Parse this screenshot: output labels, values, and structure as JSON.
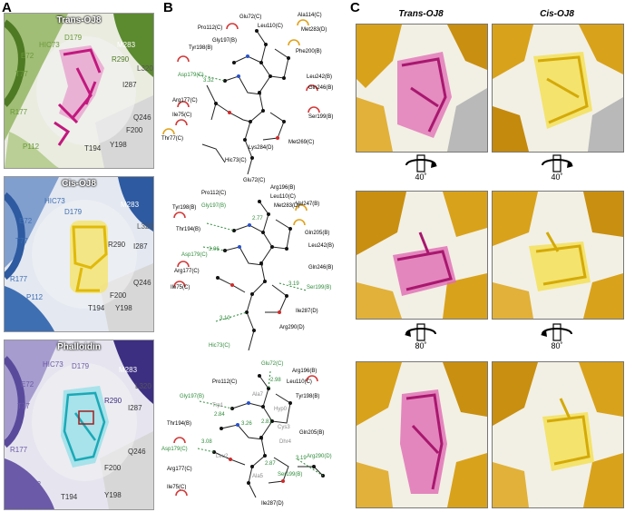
{
  "panels": {
    "a": {
      "letter": "A",
      "trans": {
        "title": "Trans-OJ8",
        "residues": [
          "D179",
          "HIC73",
          "M283",
          "E72",
          "R290",
          "L320",
          "T77",
          "I287",
          "R177",
          "Q246",
          "F200",
          "P112",
          "T194",
          "Y198"
        ]
      },
      "cis": {
        "title": "Cis-OJ8",
        "residues": [
          "HIC73",
          "D179",
          "M283",
          "E72",
          "L320",
          "T77",
          "R290",
          "I287",
          "Q246",
          "R177",
          "P112",
          "F200",
          "T194",
          "Y198"
        ]
      },
      "phalloidin": {
        "title": "Phalloidin",
        "residues": [
          "HIC73",
          "D179",
          "M283",
          "E72",
          "L320",
          "R290",
          "T77",
          "I287",
          "R177",
          "Q246",
          "F200",
          "P112",
          "T194",
          "Y198"
        ]
      }
    },
    "b": {
      "letter": "B",
      "diagram1": {
        "labels": [
          "Glu72(C)",
          "Ala114(C)",
          "Pro112(C)",
          "Leu110(C)",
          "Met283(D)",
          "Gly197(B)",
          "Tyr198(B)",
          "Phe200(B)",
          "Asp179(C)",
          "Leu242(B)",
          "Arg177(C)",
          "Gln246(B)",
          "Ile75(C)",
          "Ser199(B)",
          "Thr77(C)",
          "Met269(C)",
          "Lys284(D)",
          "Hic73(C)"
        ],
        "distances": [
          "3.32"
        ]
      },
      "diagram2": {
        "labels": [
          "Glu72(C)",
          "Arg196(B)",
          "Pro112(C)",
          "Leu110(C)",
          "Met283(D)",
          "Tyr198(B)",
          "Gly197(B)",
          "Val247(B)",
          "Thr194(B)",
          "Gln205(B)",
          "Asp179(C)",
          "Leu242(B)",
          "Arg177(C)",
          "Gln246(B)",
          "Ile75(C)",
          "Ser199(B)",
          "Ile287(D)",
          "Arg290(D)",
          "Hic73(C)"
        ],
        "distances": [
          "2.77",
          "3.06",
          "3.19",
          "3.10"
        ]
      },
      "diagram3": {
        "labels": [
          "Glu72(C)",
          "Arg196(B)",
          "Pro112(C)",
          "Leu110(C)",
          "Gly197(B)",
          "Ala7",
          "Tyr198(B)",
          "Trp1",
          "Hyp0",
          "Thr194(B)",
          "Cys3",
          "Gln205(B)",
          "Asp179(C)",
          "Dhr4",
          "Leu2",
          "Ala5",
          "Arg290(D)",
          "Arg177(C)",
          "Ser199(B)",
          "Ile75(C)",
          "Ile287(D)"
        ],
        "distances": [
          "2.98",
          "2.84",
          "2.81",
          "3.26",
          "3.08",
          "3.19",
          "2.87"
        ]
      }
    },
    "c": {
      "letter": "C",
      "trans_title": "Trans-OJ8",
      "cis_title": "Cis-OJ8",
      "rotations": [
        "40˚",
        "40˚",
        "80˚",
        "80˚"
      ]
    }
  },
  "colors": {
    "trans_ligand": "#d9459a",
    "cis_ligand": "#f0d22a",
    "phalloidin_ligand": "#35c8d4",
    "trans_protein": "#6c9a3c",
    "cis_protein": "#3f6fb3",
    "phalloidin_protein": "#6b5aa8",
    "surface_gold": "#d9a21b",
    "hbond": "#2e8b3a"
  }
}
